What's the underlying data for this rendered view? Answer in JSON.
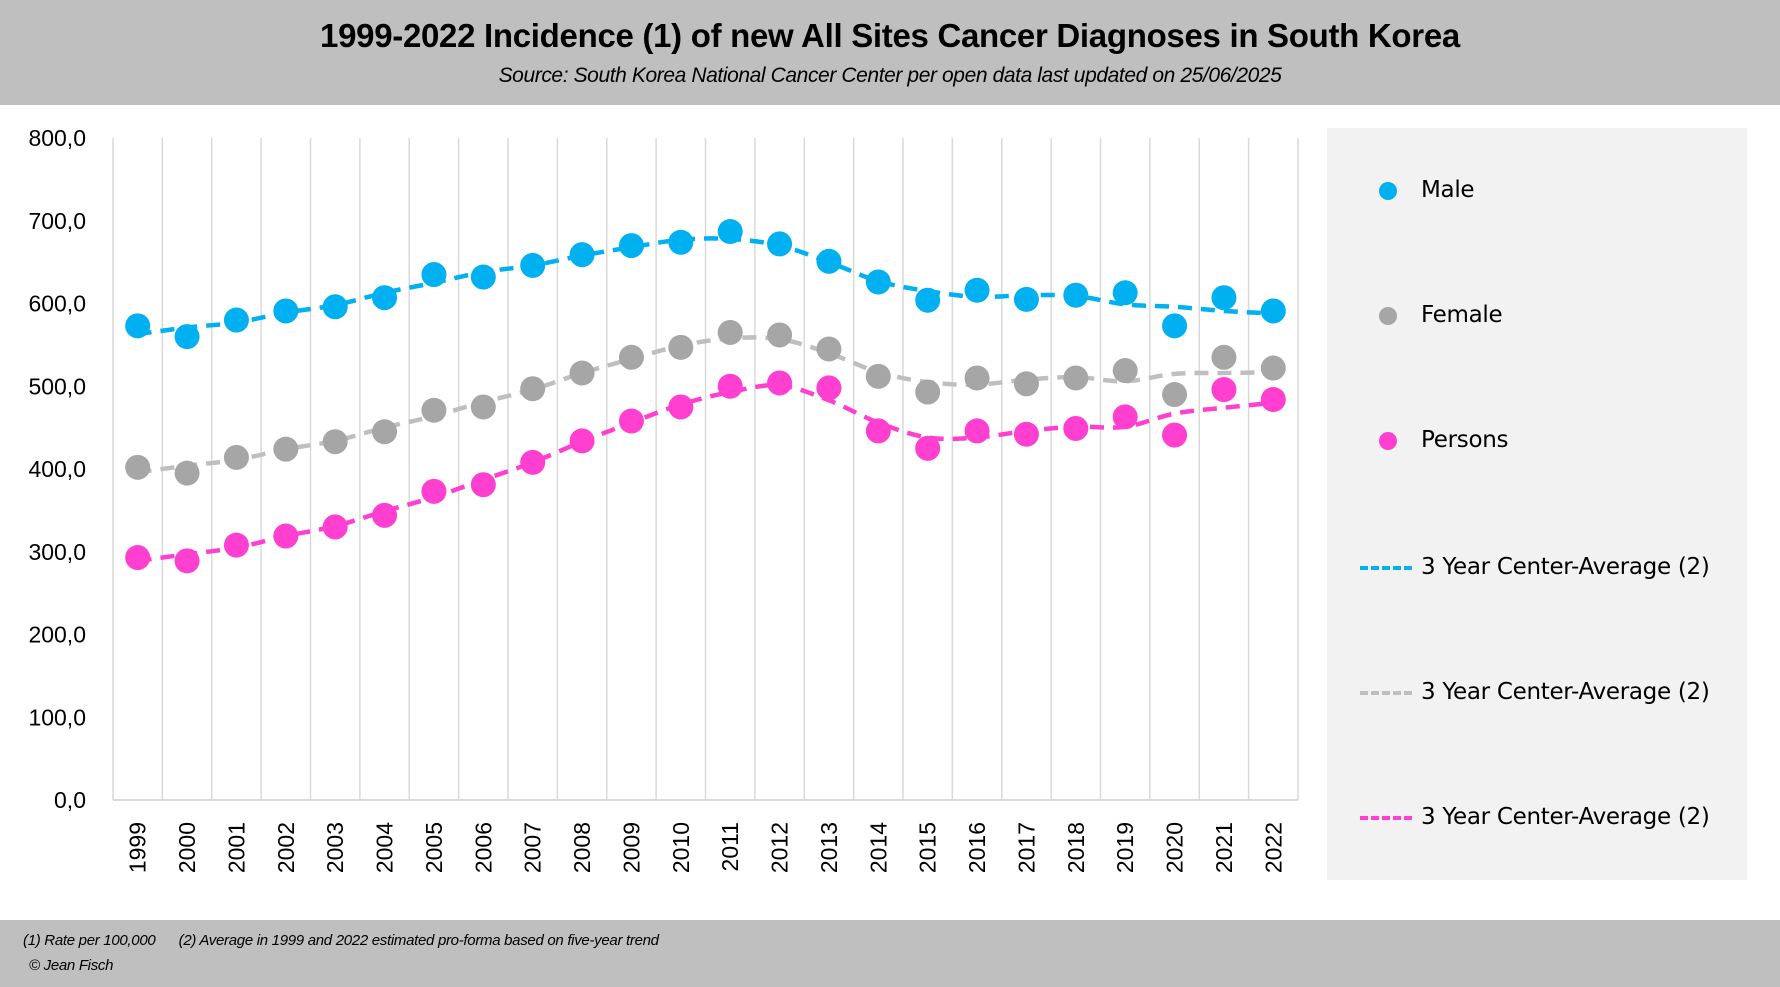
{
  "header": {
    "title": "1999-2022 Incidence (1) of new All Sites Cancer Diagnoses in South Korea",
    "subtitle": "Source: South Korea National Cancer Center per open data last updated on 25/06/2025"
  },
  "footer": {
    "note": "(1) Rate per 100,000      (2) Average in 1999 and 2022 estimated pro-forma based on five-year trend",
    "copyright": "© Jean Fisch"
  },
  "colors": {
    "male": "#00b0f0",
    "female": "#a6a6a6",
    "female_avg": "#bfbfbf",
    "persons": "#ff3fd0",
    "header_band": "#bfbfbf",
    "legend_panel": "#f2f2f2",
    "grid": "#d9d9d9"
  },
  "legend": {
    "items": [
      {
        "label": "Male",
        "kind": "marker",
        "series": "male"
      },
      {
        "label": "Female",
        "kind": "marker",
        "series": "female"
      },
      {
        "label": "Persons",
        "kind": "marker",
        "series": "persons"
      },
      {
        "label": "3 Year Center-Average (2)",
        "kind": "dash",
        "series": "male_avg"
      },
      {
        "label": "3 Year Center-Average (2)",
        "kind": "dash",
        "series": "female_avg"
      },
      {
        "label": "3 Year Center-Average (2)",
        "kind": "dash",
        "series": "persons_avg"
      }
    ]
  },
  "chart_data": {
    "type": "scatter",
    "title": "1999-2022 Incidence (1) of new All Sites Cancer Diagnoses in South Korea",
    "subtitle": "Source: South Korea National Cancer Center per open data last updated on 25/06/2025",
    "xlabel": "",
    "ylabel": "",
    "ylim": [
      0,
      800
    ],
    "yticks": [
      0,
      100,
      200,
      300,
      400,
      500,
      600,
      700,
      800
    ],
    "ytick_labels": [
      "0,0",
      "100,0",
      "200,0",
      "300,0",
      "400,0",
      "500,0",
      "600,0",
      "700,0",
      "800,0"
    ],
    "grid": "vertical",
    "legend_position": "right",
    "categories": [
      "1999",
      "2000",
      "2001",
      "2002",
      "2003",
      "2004",
      "2005",
      "2006",
      "2007",
      "2008",
      "2009",
      "2010",
      "2011",
      "2012",
      "2013",
      "2014",
      "2015",
      "2016",
      "2017",
      "2018",
      "2019",
      "2020",
      "2021",
      "2022"
    ],
    "series": [
      {
        "name": "Male",
        "key": "male",
        "style": "markers",
        "values": [
          573,
          560,
          580,
          591,
          596,
          607,
          635,
          632,
          646,
          659,
          670,
          674,
          687,
          672,
          651,
          626,
          604,
          616,
          605,
          610,
          613,
          573,
          607,
          591
        ]
      },
      {
        "name": "Female",
        "key": "female",
        "style": "markers",
        "values": [
          402,
          395,
          414,
          424,
          433,
          445,
          471,
          475,
          497,
          516,
          535,
          547,
          565,
          562,
          545,
          512,
          493,
          510,
          503,
          510,
          519,
          490,
          535,
          522
        ]
      },
      {
        "name": "Persons",
        "key": "persons",
        "style": "markers",
        "values": [
          293,
          289,
          308,
          319,
          330,
          344,
          373,
          381,
          408,
          434,
          458,
          475,
          500,
          504,
          498,
          446,
          425,
          446,
          442,
          449,
          463,
          441,
          496,
          484
        ]
      },
      {
        "name": "3 Year Center-Average (2)",
        "key": "male_avg",
        "style": "dashed-smooth",
        "values": [
          563,
          571,
          577,
          589,
          598,
          613,
          625,
          638,
          646,
          658,
          668,
          677,
          678,
          670,
          650,
          627,
          615,
          608,
          610,
          609,
          599,
          596,
          591,
          588
        ]
      },
      {
        "name": "3 Year Center-Average (2)",
        "key": "female_avg",
        "style": "dashed-smooth",
        "values": [
          396,
          404,
          411,
          424,
          434,
          450,
          464,
          481,
          496,
          516,
          533,
          549,
          558,
          557,
          540,
          517,
          505,
          502,
          508,
          511,
          506,
          515,
          516,
          517
        ]
      },
      {
        "name": "3 Year Center-Average (2)",
        "key": "persons_avg",
        "style": "dashed-smooth",
        "values": [
          289,
          297,
          305,
          319,
          331,
          349,
          366,
          387,
          408,
          433,
          456,
          478,
          493,
          501,
          483,
          456,
          438,
          438,
          446,
          451,
          451,
          467,
          474,
          480
        ]
      }
    ]
  }
}
